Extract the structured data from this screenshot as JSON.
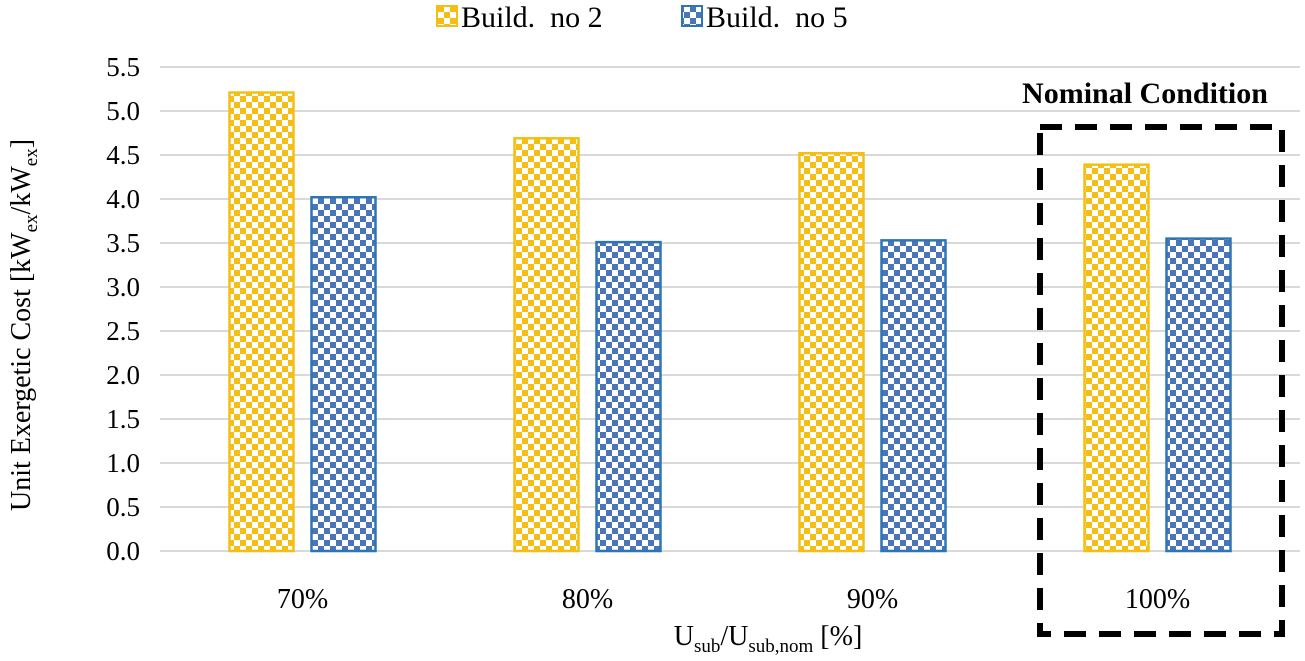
{
  "chart_data": {
    "type": "bar",
    "categories": [
      "70%",
      "80%",
      "90%",
      "100%"
    ],
    "series": [
      {
        "name": "Build.  no 2",
        "values": [
          5.21,
          4.69,
          4.52,
          4.39
        ],
        "color": "#F5BE14",
        "pattern": "checkerboard"
      },
      {
        "name": "Build.  no 5",
        "values": [
          4.02,
          3.51,
          3.53,
          3.55
        ],
        "color": "#4A75B8",
        "pattern": "checkerboard"
      }
    ],
    "ylim": [
      0,
      5.5
    ],
    "yticks": [
      "0.0",
      "0.5",
      "1.0",
      "1.5",
      "2.0",
      "2.5",
      "3.0",
      "3.5",
      "4.0",
      "4.5",
      "5.0",
      "5.5"
    ],
    "ytick_values": [
      0,
      0.5,
      1,
      1.5,
      2,
      2.5,
      3,
      3.5,
      4,
      4.5,
      5,
      5.5
    ],
    "ylabel": {
      "main": "Unit Exergetic Cost [kW",
      "sub1": "ex",
      "mid": "/kW",
      "sub2": "ex",
      "end": "]"
    },
    "xlabel": {
      "main": "U",
      "sub1": "sub",
      "mid": "/U",
      "sub2": "sub,nom",
      "end": " [%]"
    },
    "grid": true,
    "legend_position": "top-center",
    "annotation": {
      "text": "Nominal Condition",
      "target_category": "100%",
      "style": "dashed-box"
    }
  }
}
